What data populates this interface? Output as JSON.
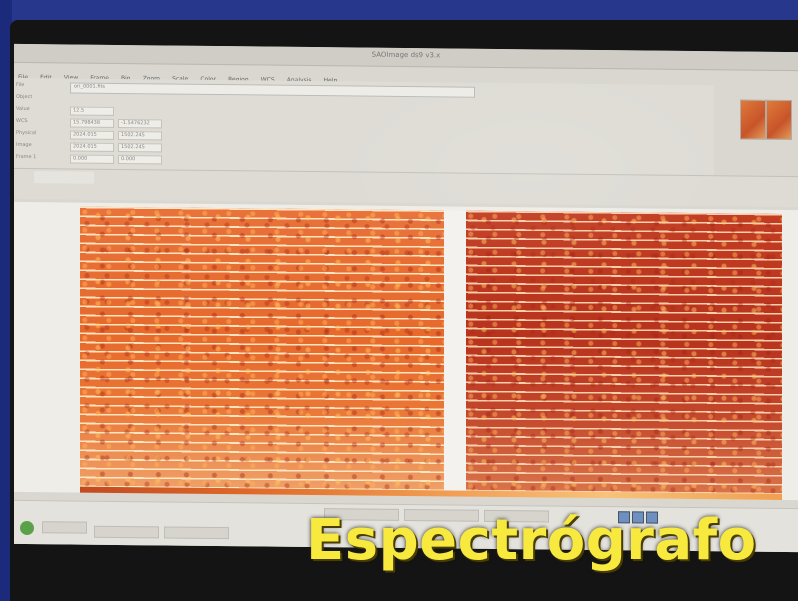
{
  "caption": "Espectrógrafo",
  "screen": {
    "window_title": "SAOImage ds9 v3.x",
    "menu": [
      "File",
      "Edit",
      "View",
      "Frame",
      "Bin",
      "Zoom",
      "Scale",
      "Color",
      "Region",
      "WCS",
      "Analysis",
      "Help"
    ],
    "file_path": "ori_0001.fits",
    "info_labels": [
      "File",
      "Object",
      "Value",
      "WCS",
      "Physical",
      "Image",
      "Frame 1"
    ],
    "info_values": {
      "value": "12.5",
      "wcs": [
        "15.798438",
        "-1.5476232"
      ],
      "physical": [
        "2024.015",
        "1502.245"
      ],
      "image": [
        "2024.015",
        "1502.245"
      ],
      "frame": [
        "0.000",
        "0.000"
      ]
    }
  },
  "colors": {
    "caption": "#f7e93d",
    "background": "#27378c",
    "spectrum_left": "#e7692c",
    "spectrum_right": "#b8331d"
  }
}
